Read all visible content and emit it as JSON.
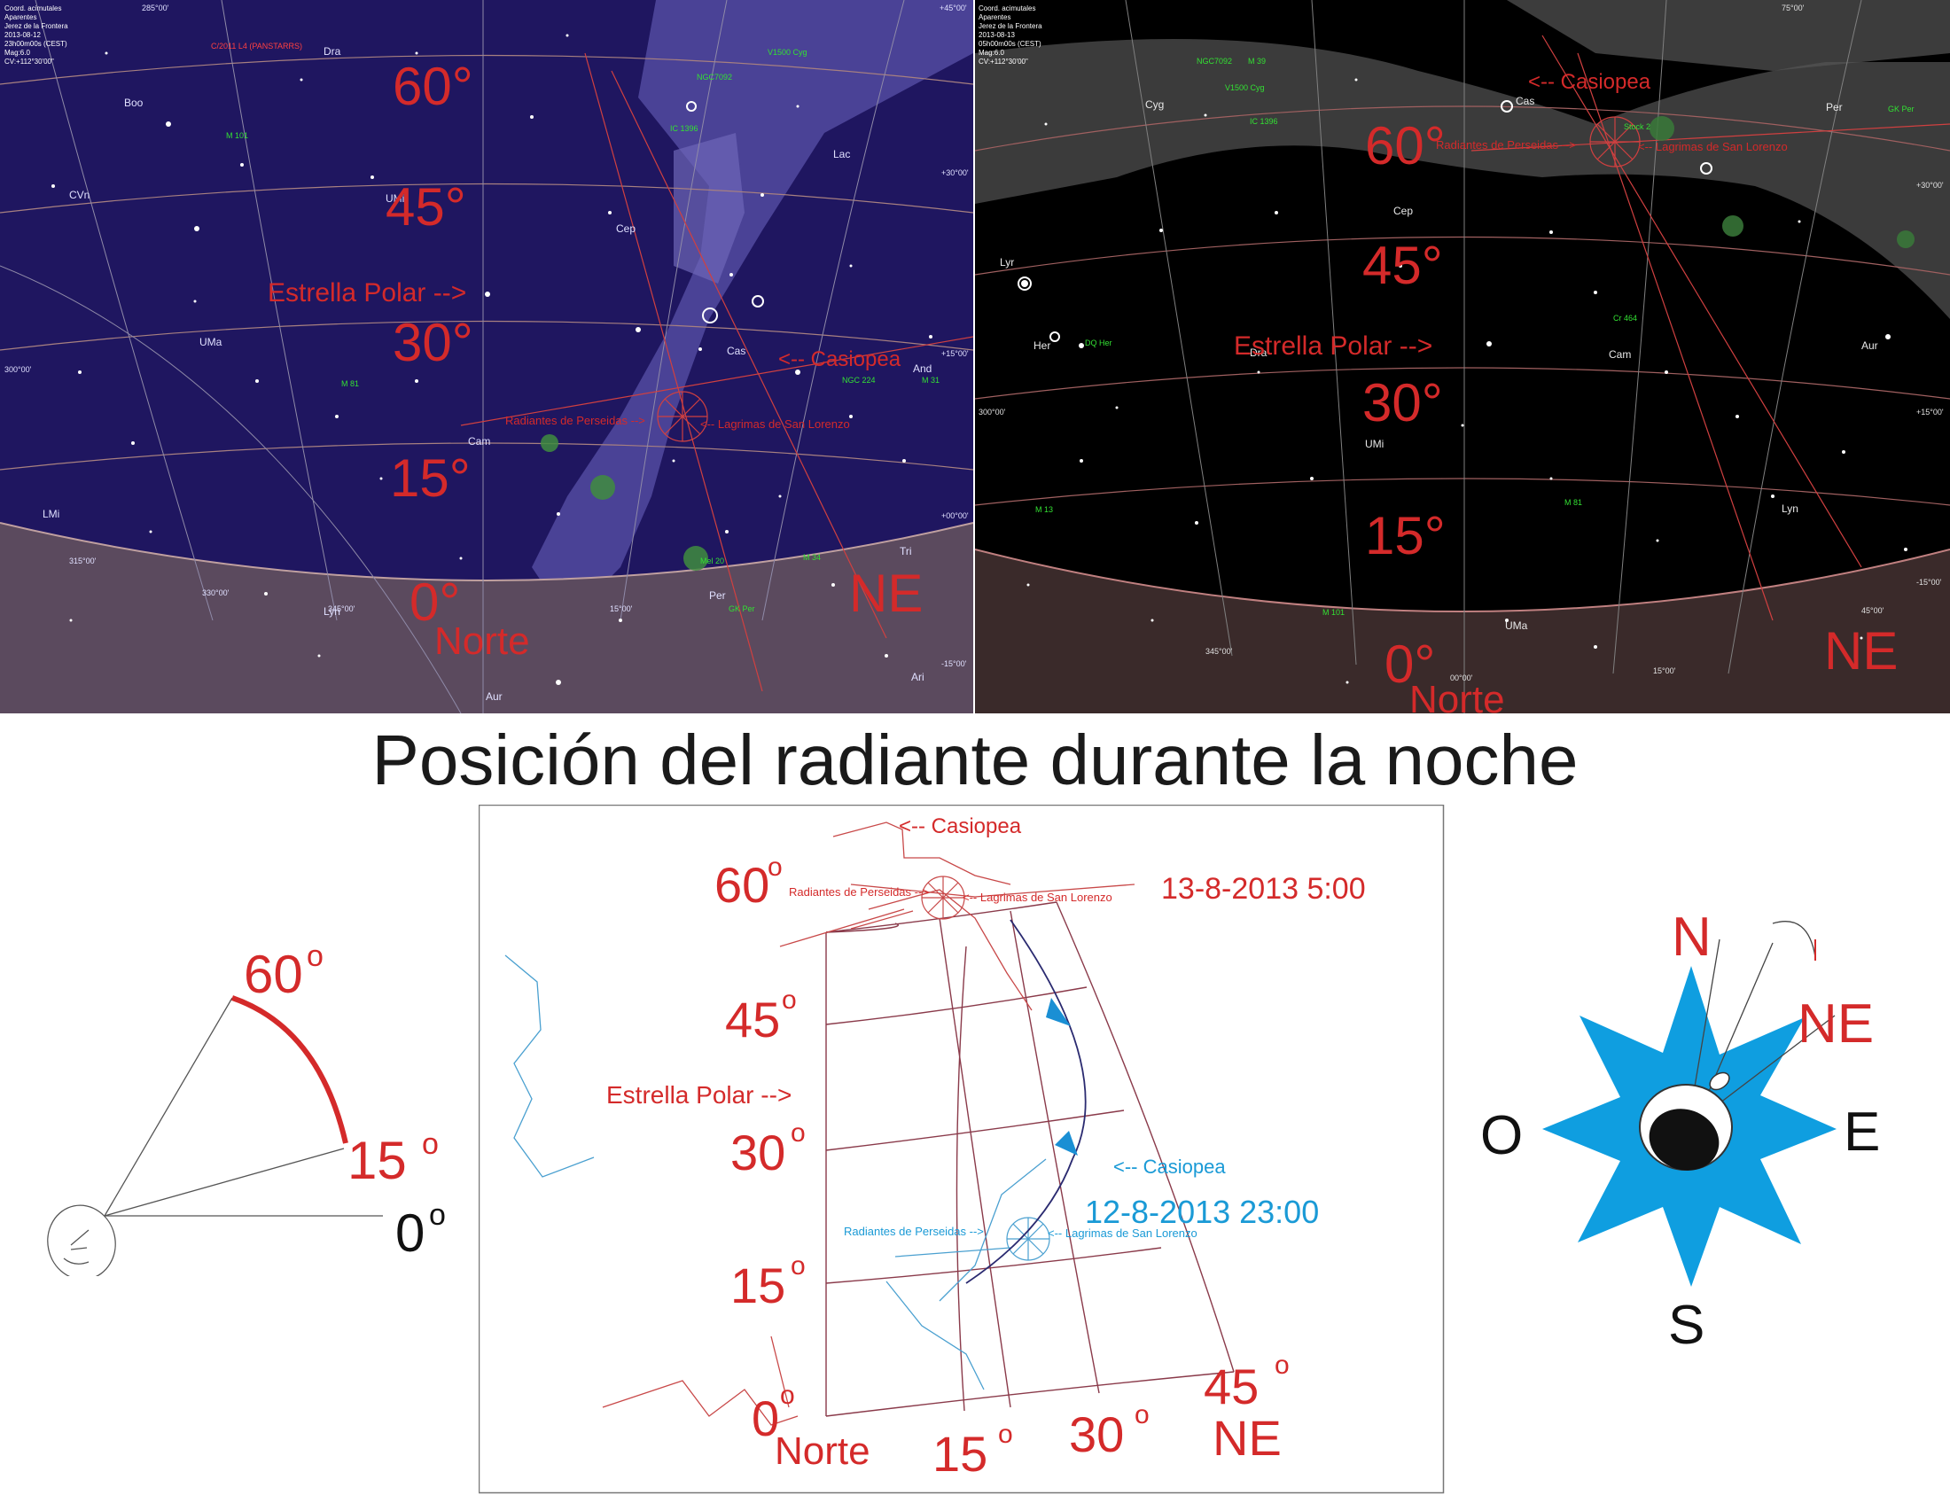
{
  "left_chart": {
    "info": [
      "Coord. acimutales",
      "Aparentes",
      "Jerez de la Frontera",
      "2013-08-12",
      "23h00m00s (CEST)",
      "Mag:6.0",
      "CV:+112°30'00\""
    ],
    "alt_labels": [
      "60°",
      "45°",
      "30°",
      "15°",
      "0°"
    ],
    "polar_label": "Estrella Polar -->",
    "casiopea": "<-- Casiopea",
    "radiante": "Radiantes de Perseidas -->",
    "lagrimas": "<-- Lagrimas de San Lorenzo",
    "norte": "Norte",
    "ne": "NE",
    "constellations": [
      "Dra",
      "UMi",
      "Cep",
      "Cas",
      "And",
      "Per",
      "Lac",
      "Cam",
      "UMa",
      "Lyn",
      "LMi",
      "CVn",
      "Aur",
      "Tri",
      "Ari",
      "Boo"
    ],
    "objects": [
      "M 101",
      "M 81",
      "M 31",
      "M 34",
      "NGC 224",
      "IC 1396",
      "NGC7092",
      "V1500 Cyg",
      "GK Per",
      "Mel 20",
      "C/2011 L4 (PANSTARRS)"
    ],
    "az_labels": [
      "285°00'",
      "300°00'",
      "315°00'",
      "330°00'",
      "345°00'",
      "15°00'",
      "+45°00'",
      "+30°00'",
      "+15°00'",
      "+00°00'",
      "-15°00'"
    ]
  },
  "right_chart": {
    "info": [
      "Coord. acimutales",
      "Aparentes",
      "Jerez de la Frontera",
      "2013-08-13",
      "05h00m00s (CEST)",
      "Mag:6.0",
      "CV:+112°30'00\""
    ],
    "alt_labels": [
      "60°",
      "45°",
      "30°",
      "15°",
      "0°"
    ],
    "polar_label": "Estrella Polar -->",
    "casiopea": "<-- Casiopea",
    "radiante": "Radiantes de Perseidas -->",
    "lagrimas": "<-- Lagrimas de San Lorenzo",
    "norte": "Norte",
    "ne": "NE",
    "constellations": [
      "Cyg",
      "Lyr",
      "Dra",
      "Cep",
      "Cas",
      "UMi",
      "Cam",
      "Per",
      "Lyn",
      "UMa",
      "Her",
      "Aur"
    ],
    "objects": [
      "NGC7092",
      "M 39",
      "V1500 Cyg",
      "IC 1396",
      "Stock 2",
      "GK Per",
      "Cr 464",
      "M 13",
      "M 81",
      "M 101",
      "DQ Her"
    ],
    "az_labels": [
      "75°00'",
      "300°00'",
      "345°00'",
      "15°00'",
      "45°00'",
      "00°00'",
      "+30°00'",
      "+15°00'",
      "-15°00'"
    ]
  },
  "title": "Posición del radiante durante la noche",
  "angle_diagram": {
    "labels": [
      "60",
      "15",
      "0"
    ],
    "deg": "o"
  },
  "center_diagram": {
    "alt_labels": [
      "60",
      "45",
      "30",
      "15",
      "0"
    ],
    "az_labels": [
      "15",
      "30",
      "45"
    ],
    "deg": "o",
    "norte": "Norte",
    "ne": "NE",
    "casiopea_top": "<-- Casiopea",
    "casiopea_bottom": "<-- Casiopea",
    "polar_label": "Estrella Polar -->",
    "radiante_top": "Radiantes de Perseidas -->",
    "lagrimas_top": "<-- Lagrimas de San Lorenzo",
    "radiante_bottom": "Radiantes de Perseidas -->",
    "lagrimas_bottom": "<-- Lagrimas de San Lorenzo",
    "time_top": "13-8-2013 5:00",
    "time_bottom": "12-8-2013 23:00"
  },
  "compass": {
    "n": "N",
    "ne": "NE",
    "e": "E",
    "s": "S",
    "o": "O"
  },
  "colors": {
    "label_red": "#d42a2a",
    "night_blue": "#1f1660",
    "milky": "#5a52a8",
    "compass_blue": "#0f9ee0",
    "time_blue": "#1a9ad6"
  }
}
